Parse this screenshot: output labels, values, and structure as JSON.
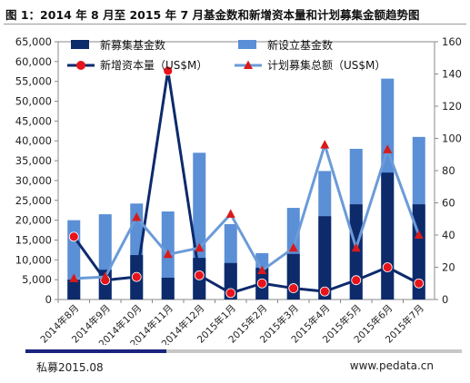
{
  "title": "图 1：2014 年 8 月至 2015 年 7 月基金数和新增资本量和计划募集金额趋势图",
  "footer": {
    "left": "私募2015.08",
    "right": "www.pedata.cn"
  },
  "colors": {
    "dark_bar": "#0d2a6b",
    "light_bar": "#5b8fd6",
    "red_line": "#0d2a6b",
    "red_marker": "#e8141b",
    "plan_line": "#6b9bd8",
    "plan_marker": "#d81b1b"
  },
  "chart_data": {
    "type": "bar",
    "categories": [
      "2014年8月",
      "2014年9月",
      "2014年10月",
      "2014年11月",
      "2014年12月",
      "2015年1月",
      "2015年2月",
      "2015年3月",
      "2015年4月",
      "2015年5月",
      "2015年6月",
      "2015年7月"
    ],
    "y_left": {
      "min": 0,
      "max": 65000,
      "step": 5000,
      "tick_labels": [
        "0",
        "5,000",
        "10,000",
        "15,000",
        "20,000",
        "25,000",
        "30,000",
        "35,000",
        "40,000",
        "45,000",
        "50,000",
        "55,000",
        "60,000",
        "65,000"
      ]
    },
    "y_right": {
      "min": 0,
      "max": 160,
      "step": 20,
      "tick_labels": [
        "0",
        "20",
        "40",
        "60",
        "80",
        "100",
        "120",
        "140",
        "160"
      ]
    },
    "series": [
      {
        "name": "新募集基金数",
        "kind": "bar",
        "axis": "left",
        "values": [
          5000,
          7500,
          11200,
          5500,
          10500,
          9200,
          8000,
          11500,
          21000,
          24000,
          32000,
          24000
        ]
      },
      {
        "name": "新设立基金数",
        "kind": "bar",
        "axis": "left",
        "values": [
          20000,
          21500,
          24200,
          22200,
          37000,
          19000,
          11700,
          23100,
          32400,
          38000,
          55700,
          41000
        ]
      },
      {
        "name": "新增资本量（US$M）",
        "kind": "line",
        "axis": "right",
        "values": [
          39,
          12,
          14,
          142,
          15,
          4,
          10,
          7,
          5,
          12,
          20,
          10
        ]
      },
      {
        "name": "计划募集总额（US$M）",
        "kind": "line",
        "axis": "right",
        "values": [
          13,
          14,
          51,
          28,
          32,
          53,
          18,
          32,
          96,
          32,
          93,
          40
        ]
      }
    ]
  }
}
